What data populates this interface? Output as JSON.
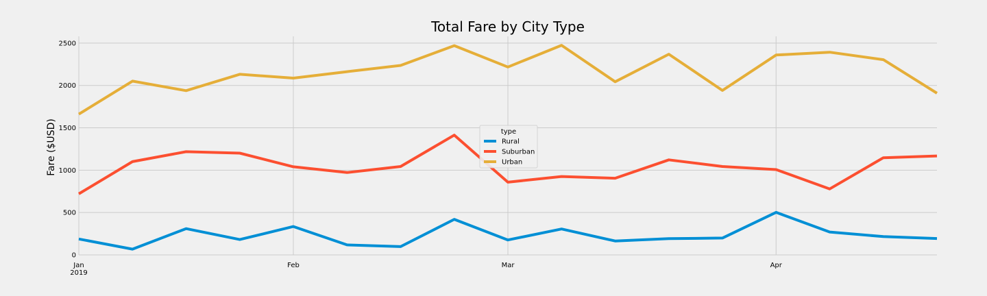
{
  "chart_data": {
    "type": "line",
    "title": "Total Fare by City Type",
    "xlabel": "",
    "ylabel": "Fare ($USD)",
    "ylim": [
      0,
      2580
    ],
    "x": [
      "2019-01-06",
      "2019-01-13",
      "2019-01-20",
      "2019-01-27",
      "2019-02-03",
      "2019-02-10",
      "2019-02-17",
      "2019-02-24",
      "2019-03-03",
      "2019-03-10",
      "2019-03-17",
      "2019-03-24",
      "2019-03-31",
      "2019-04-07",
      "2019-04-14",
      "2019-04-21",
      "2019-04-28"
    ],
    "xlim": [
      "2019-01-06",
      "2019-04-28"
    ],
    "x_ticks": [
      {
        "date": "2019-01-06",
        "label": "Jan",
        "sublabel": "2019"
      },
      {
        "date": "2019-02-03",
        "label": "Feb",
        "sublabel": ""
      },
      {
        "date": "2019-03-03",
        "label": "Mar",
        "sublabel": ""
      },
      {
        "date": "2019-04-07",
        "label": "Apr",
        "sublabel": ""
      }
    ],
    "y_ticks": [
      0,
      500,
      1000,
      1500,
      2000,
      2500
    ],
    "grid": true,
    "legend": {
      "title": "type",
      "position": "center"
    },
    "series": [
      {
        "name": "Rural",
        "color": "#008fd5",
        "values": [
          188,
          68,
          310,
          181,
          335,
          118,
          98,
          420,
          176,
          306,
          164,
          192,
          199,
          502,
          270,
          216,
          193
        ]
      },
      {
        "name": "Suburban",
        "color": "#fc4f30",
        "values": [
          721,
          1101,
          1218,
          1201,
          1040,
          972,
          1043,
          1414,
          858,
          925,
          905,
          1122,
          1043,
          1007,
          779,
          1147,
          1168
        ]
      },
      {
        "name": "Urban",
        "color": "#e5ae38",
        "values": [
          1661,
          2051,
          1939,
          2132,
          2087,
          2163,
          2236,
          2470,
          2218,
          2474,
          2044,
          2369,
          1941,
          2359,
          2392,
          2304,
          1909
        ]
      }
    ]
  }
}
